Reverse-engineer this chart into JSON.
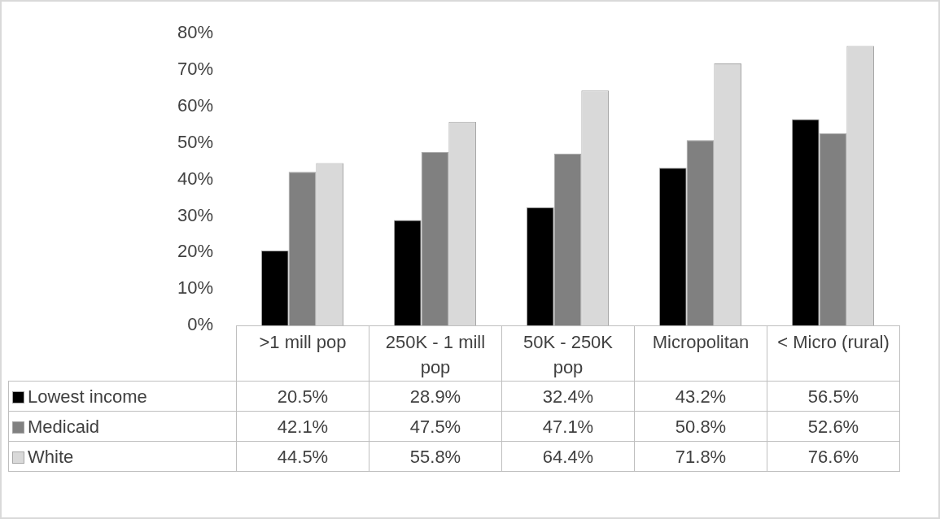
{
  "chart_data": {
    "type": "bar",
    "categories": [
      ">1 mill pop",
      "250K - 1 mill pop",
      "50K - 250K pop",
      "Micropolitan",
      "< Micro (rural)"
    ],
    "series": [
      {
        "name": "Lowest income",
        "color": "#000000",
        "values": [
          20.5,
          28.9,
          32.4,
          43.2,
          56.5
        ],
        "value_labels": [
          "20.5%",
          "28.9%",
          "32.4%",
          "43.2%",
          "56.5%"
        ]
      },
      {
        "name": "Medicaid",
        "color": "#808080",
        "values": [
          42.1,
          47.5,
          47.1,
          50.8,
          52.6
        ],
        "value_labels": [
          "42.1%",
          "47.5%",
          "47.1%",
          "50.8%",
          "52.6%"
        ]
      },
      {
        "name": "White",
        "color": "#d9d9d9",
        "values": [
          44.5,
          55.8,
          64.4,
          71.8,
          76.6
        ],
        "value_labels": [
          "44.5%",
          "55.8%",
          "64.4%",
          "71.8%",
          "76.6%"
        ]
      }
    ],
    "ylim": [
      0,
      80
    ],
    "yticks": [
      {
        "value": 0,
        "label": "0%"
      },
      {
        "value": 10,
        "label": "10%"
      },
      {
        "value": 20,
        "label": "20%"
      },
      {
        "value": 30,
        "label": "30%"
      },
      {
        "value": 40,
        "label": "40%"
      },
      {
        "value": 50,
        "label": "50%"
      },
      {
        "value": 60,
        "label": "60%"
      },
      {
        "value": 70,
        "label": "70%"
      },
      {
        "value": 80,
        "label": "80%"
      }
    ],
    "grid": false,
    "legend": "bottom"
  }
}
